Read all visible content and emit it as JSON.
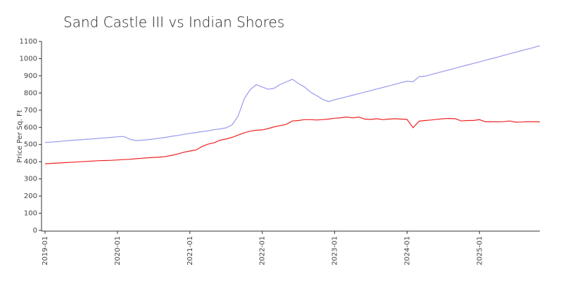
{
  "chart_data": {
    "type": "line",
    "title": "Sand Castle III vs Indian Shores",
    "y_label": "Price Per Sq. Ft",
    "x": [
      "2019-01",
      "2019-02",
      "2019-03",
      "2019-04",
      "2019-05",
      "2019-06",
      "2019-07",
      "2019-08",
      "2019-09",
      "2019-10",
      "2019-11",
      "2019-12",
      "2020-01",
      "2020-02",
      "2020-03",
      "2020-04",
      "2020-05",
      "2020-06",
      "2020-07",
      "2020-08",
      "2020-09",
      "2020-10",
      "2020-11",
      "2020-12",
      "2021-01",
      "2021-02",
      "2021-03",
      "2021-04",
      "2021-05",
      "2021-06",
      "2021-07",
      "2021-08",
      "2021-09",
      "2021-10",
      "2021-11",
      "2021-12",
      "2022-01",
      "2022-02",
      "2022-03",
      "2022-04",
      "2022-05",
      "2022-06",
      "2022-07",
      "2022-08",
      "2022-09",
      "2022-10",
      "2022-11",
      "2022-12",
      "2023-01",
      "2023-02",
      "2023-03",
      "2023-04",
      "2023-05",
      "2023-06",
      "2023-07",
      "2023-08",
      "2023-09",
      "2023-10",
      "2023-11",
      "2023-12",
      "2024-01",
      "2024-02",
      "2024-03",
      "2024-04",
      "2024-05",
      "2024-06",
      "2024-07",
      "2024-08",
      "2024-09",
      "2024-10",
      "2024-11",
      "2024-12",
      "2025-01",
      "2025-02",
      "2025-03",
      "2025-04",
      "2025-05",
      "2025-06",
      "2025-07",
      "2025-08",
      "2025-09",
      "2025-10",
      "2025-11"
    ],
    "series": [
      {
        "color": "#9999ee",
        "values": [
          512,
          514,
          517,
          520,
          523,
          526,
          528,
          531,
          533,
          536,
          539,
          542,
          545,
          547,
          532,
          523,
          525,
          528,
          532,
          537,
          542,
          548,
          553,
          559,
          565,
          570,
          575,
          580,
          586,
          591,
          597,
          615,
          665,
          765,
          820,
          848,
          835,
          822,
          828,
          850,
          865,
          880,
          855,
          835,
          805,
          785,
          763,
          750,
          760,
          769,
          778,
          787,
          796,
          805,
          814,
          823,
          832,
          841,
          850,
          860,
          869,
          865,
          895,
          898,
          907,
          917,
          926,
          935,
          944,
          954,
          963,
          972,
          981,
          991,
          1000,
          1009,
          1019,
          1028,
          1037,
          1047,
          1056,
          1065,
          1075
        ]
      },
      {
        "color": "#ee2222",
        "values": [
          388,
          390,
          392,
          394,
          396,
          398,
          400,
          402,
          404,
          406,
          407,
          408,
          410,
          412,
          414,
          417,
          420,
          423,
          425,
          427,
          430,
          437,
          445,
          455,
          462,
          468,
          488,
          502,
          510,
          525,
          532,
          542,
          555,
          568,
          578,
          583,
          585,
          593,
          603,
          610,
          618,
          637,
          640,
          645,
          645,
          643,
          645,
          648,
          653,
          656,
          660,
          655,
          660,
          648,
          646,
          650,
          645,
          648,
          650,
          648,
          646,
          598,
          636,
          640,
          643,
          647,
          650,
          652,
          650,
          637,
          640,
          640,
          645,
          632,
          632,
          632,
          633,
          637,
          630,
          631,
          633,
          632,
          632
        ]
      }
    ],
    "xlim": [
      "2019-01",
      "2025-11"
    ],
    "xticks": [
      "2019-01",
      "2020-01",
      "2021-01",
      "2022-01",
      "2023-01",
      "2024-01",
      "2025-01"
    ],
    "ylim": [
      0,
      1100
    ],
    "yticks": [
      0,
      100,
      200,
      300,
      400,
      500,
      600,
      700,
      800,
      900,
      1000,
      1100
    ]
  }
}
